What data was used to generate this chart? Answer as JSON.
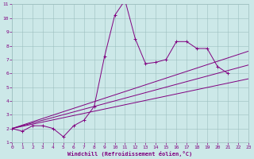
{
  "xlabel": "Windchill (Refroidissement éolien,°C)",
  "bg_color": "#cce8e8",
  "line_color": "#800080",
  "grid_color": "#9dbfbf",
  "xlim": [
    0,
    23
  ],
  "ylim": [
    1,
    11
  ],
  "xticks": [
    0,
    1,
    2,
    3,
    4,
    5,
    6,
    7,
    8,
    9,
    10,
    11,
    12,
    13,
    14,
    15,
    16,
    17,
    18,
    19,
    20,
    21,
    22,
    23
  ],
  "yticks": [
    1,
    2,
    3,
    4,
    5,
    6,
    7,
    8,
    9,
    10,
    11
  ],
  "main_series": {
    "x": [
      0,
      1,
      2,
      3,
      4,
      5,
      6,
      7,
      8,
      9,
      10,
      11,
      12,
      13,
      14,
      15,
      16,
      17,
      18,
      19,
      20,
      21
    ],
    "y": [
      2.0,
      1.8,
      2.2,
      2.2,
      2.0,
      1.4,
      2.2,
      2.6,
      3.6,
      7.2,
      10.2,
      11.3,
      8.5,
      6.7,
      6.8,
      7.0,
      8.3,
      8.3,
      7.8,
      7.8,
      6.5,
      6.0
    ]
  },
  "trend_lines": [
    {
      "x": [
        0,
        23
      ],
      "y": [
        2.0,
        5.6
      ]
    },
    {
      "x": [
        0,
        23
      ],
      "y": [
        2.0,
        6.6
      ]
    },
    {
      "x": [
        0,
        23
      ],
      "y": [
        2.0,
        7.6
      ]
    }
  ],
  "marker": "+",
  "marker_size": 3.5,
  "line_width": 0.7,
  "tick_fontsize": 4.5,
  "xlabel_fontsize": 5.0
}
